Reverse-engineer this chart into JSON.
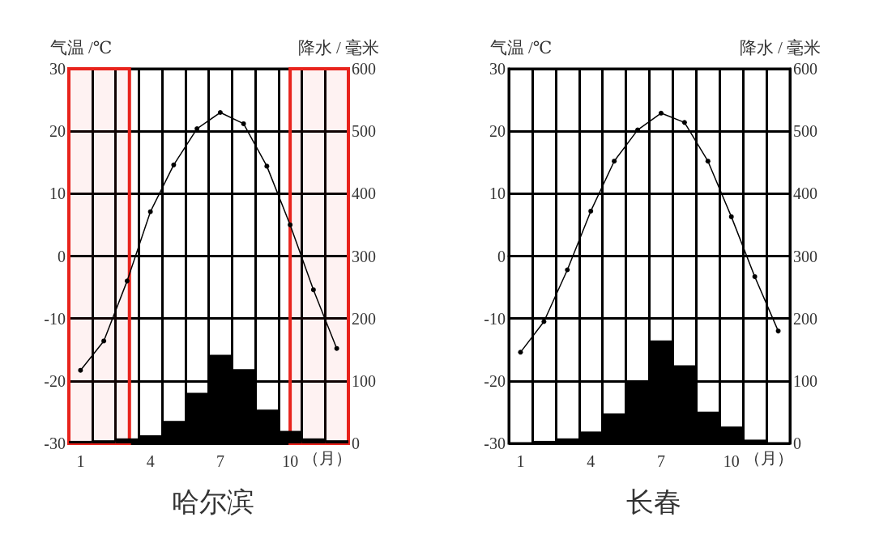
{
  "chart_data": [
    {
      "type": "bar",
      "title": "哈尔滨",
      "ylabel": "气温 /℃",
      "y2label": "降水 / 毫米",
      "xlabel": "（月）",
      "x": [
        1,
        2,
        3,
        4,
        5,
        6,
        7,
        8,
        9,
        10,
        11,
        12
      ],
      "xlim": [
        0.5,
        12.5
      ],
      "xticks": [
        {
          "value": 0.5,
          "label": null
        },
        1,
        {
          "value": 1.5,
          "label": null
        },
        {
          "value": 2.5,
          "label": null
        },
        {
          "value": 3.5,
          "label": null
        },
        4,
        {
          "value": 4.5,
          "label": null
        },
        {
          "value": 5.5,
          "label": null
        },
        {
          "value": 6.5,
          "label": null
        },
        7,
        {
          "value": 7.5,
          "label": null
        },
        {
          "value": 8.5,
          "label": null
        },
        {
          "value": 9.5,
          "label": null
        },
        10,
        {
          "value": 10.5,
          "label": null
        },
        {
          "value": 11.5,
          "label": null
        },
        {
          "value": 12.5,
          "label": null
        }
      ],
      "ylim": [
        -30,
        30
      ],
      "yticks": [
        -30,
        -20,
        -10,
        0,
        10,
        20,
        30
      ],
      "y2lim": [
        0,
        600
      ],
      "y2ticks": [
        0,
        100,
        200,
        300,
        400,
        500,
        600
      ],
      "grid": true,
      "marker": "circle",
      "line_style": "solid",
      "series": [
        {
          "axis": "y2",
          "color": "#000000",
          "values": [
            4,
            5,
            8,
            13,
            36,
            81,
            142,
            119,
            54,
            20,
            8,
            5
          ]
        },
        {
          "type": "line",
          "color": "#000000",
          "values": [
            -18.3,
            -13.6,
            -4.0,
            7.1,
            14.6,
            20.4,
            23.0,
            21.2,
            14.4,
            5.0,
            -5.4,
            -14.8
          ]
        }
      ],
      "bands": [
        {
          "axis": "x",
          "from": 0.5,
          "to": 3.1,
          "color": "#e8231c"
        },
        {
          "axis": "x",
          "from": 10.0,
          "to": 12.5,
          "color": "#e8231c"
        }
      ]
    },
    {
      "type": "bar",
      "title": "长春",
      "ylabel": "气温 /℃",
      "y2label": "降水 / 毫米",
      "xlabel": "（月）",
      "x": [
        1,
        2,
        3,
        4,
        5,
        6,
        7,
        8,
        9,
        10,
        11,
        12
      ],
      "xlim": [
        0.5,
        12.5
      ],
      "xticks": [
        {
          "value": 0.5,
          "label": null
        },
        1,
        {
          "value": 1.5,
          "label": null
        },
        {
          "value": 2.5,
          "label": null
        },
        {
          "value": 3.5,
          "label": null
        },
        4,
        {
          "value": 4.5,
          "label": null
        },
        {
          "value": 5.5,
          "label": null
        },
        {
          "value": 6.5,
          "label": null
        },
        7,
        {
          "value": 7.5,
          "label": null
        },
        {
          "value": 8.5,
          "label": null
        },
        {
          "value": 9.5,
          "label": null
        },
        10,
        {
          "value": 10.5,
          "label": null
        },
        {
          "value": 11.5,
          "label": null
        },
        {
          "value": 12.5,
          "label": null
        }
      ],
      "ylim": [
        -30,
        30
      ],
      "yticks": [
        -30,
        -20,
        -10,
        0,
        10,
        20,
        30
      ],
      "y2lim": [
        0,
        600
      ],
      "y2ticks": [
        0,
        100,
        200,
        300,
        400,
        500,
        600
      ],
      "grid": true,
      "marker": "circle",
      "line_style": "solid",
      "series": [
        {
          "axis": "y2",
          "color": "#000000",
          "values": [
            1,
            4,
            8,
            19,
            48,
            100,
            165,
            125,
            51,
            27,
            6,
            1
          ]
        },
        {
          "type": "line",
          "color": "#000000",
          "values": [
            -15.4,
            -10.5,
            -2.2,
            7.2,
            15.2,
            20.2,
            22.9,
            21.4,
            15.2,
            6.3,
            -3.3,
            -12.0
          ]
        }
      ]
    }
  ]
}
